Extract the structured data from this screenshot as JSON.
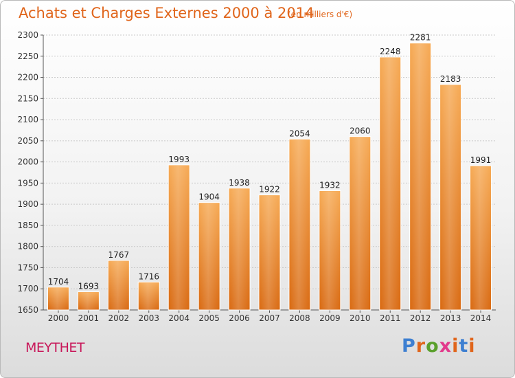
{
  "title": "Achats et Charges Externes 2000 à 2014",
  "unit_label": "(en milliers d'€)",
  "commune": "MEYTHET",
  "logo": {
    "letters": [
      "P",
      "r",
      "o",
      "x",
      "i",
      "t",
      "i"
    ],
    "colors": [
      "#3d7fd1",
      "#e0651b",
      "#5aa02c",
      "#e23a8c",
      "#e0651b",
      "#3d7fd1",
      "#e0651b"
    ]
  },
  "colors": {
    "bar": "#f0953c",
    "title": "#e0651b",
    "commune": "#c8185a"
  },
  "chart_data": {
    "type": "bar",
    "title": "Achats et Charges Externes 2000 à 2014",
    "ylabel": "",
    "xlabel": "",
    "categories": [
      "2000",
      "2001",
      "2002",
      "2003",
      "2004",
      "2005",
      "2006",
      "2007",
      "2008",
      "2009",
      "2010",
      "2011",
      "2012",
      "2013",
      "2014"
    ],
    "values": [
      1704,
      1693,
      1767,
      1716,
      1993,
      1904,
      1938,
      1922,
      2054,
      1932,
      2060,
      2248,
      2281,
      2183,
      1991
    ],
    "ylim": [
      1650,
      2300
    ],
    "yticks": [
      1650,
      1700,
      1750,
      1800,
      1850,
      1900,
      1950,
      2000,
      2050,
      2100,
      2150,
      2200,
      2250,
      2300
    ],
    "grid": true,
    "legend": "none"
  }
}
